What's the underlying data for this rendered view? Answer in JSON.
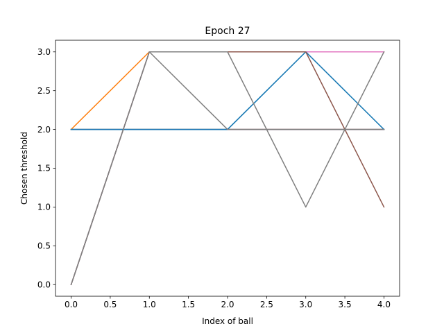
{
  "chart_data": {
    "type": "line",
    "title": "Epoch 27",
    "xlabel": "Index of ball",
    "ylabel": "Chosen threshold",
    "xlim": [
      -0.2,
      4.2
    ],
    "ylim": [
      -0.15,
      3.15
    ],
    "xticks": [
      0.0,
      0.5,
      1.0,
      1.5,
      2.0,
      2.5,
      3.0,
      3.5,
      4.0
    ],
    "xtick_labels": [
      "0.0",
      "0.5",
      "1.0",
      "1.5",
      "2.0",
      "2.5",
      "3.0",
      "3.5",
      "4.0"
    ],
    "yticks": [
      0.0,
      0.5,
      1.0,
      1.5,
      2.0,
      2.5,
      3.0
    ],
    "ytick_labels": [
      "0.0",
      "0.5",
      "1.0",
      "1.5",
      "2.0",
      "2.5",
      "3.0"
    ],
    "grid": false,
    "legend": "none",
    "x": [
      0,
      1,
      2,
      3,
      4
    ],
    "series": [
      {
        "color": "#2ca02c",
        "values": [
          2,
          2,
          2,
          2,
          2
        ]
      },
      {
        "color": "#d62728",
        "values": [
          2,
          2,
          2,
          2,
          2
        ]
      },
      {
        "color": "#9467bd",
        "values": [
          2,
          2,
          2,
          2,
          2
        ]
      },
      {
        "color": "#ff7f0e",
        "values": [
          2,
          3,
          3,
          3,
          3
        ]
      },
      {
        "color": "#e377c2",
        "values": [
          0,
          3,
          3,
          3,
          3
        ]
      },
      {
        "color": "#17becf",
        "values": [
          2,
          2,
          2,
          3,
          2
        ]
      },
      {
        "color": "#1f77b4",
        "values": [
          2,
          2,
          2,
          3,
          2
        ]
      },
      {
        "color": "#8c564b",
        "values": [
          0,
          3,
          3,
          3,
          1
        ]
      },
      {
        "color": "#7f7f7f",
        "values": [
          0,
          3,
          3,
          1,
          3
        ]
      },
      {
        "color": "#7f7f7f",
        "values": [
          0,
          3,
          2,
          2,
          2
        ]
      }
    ]
  }
}
